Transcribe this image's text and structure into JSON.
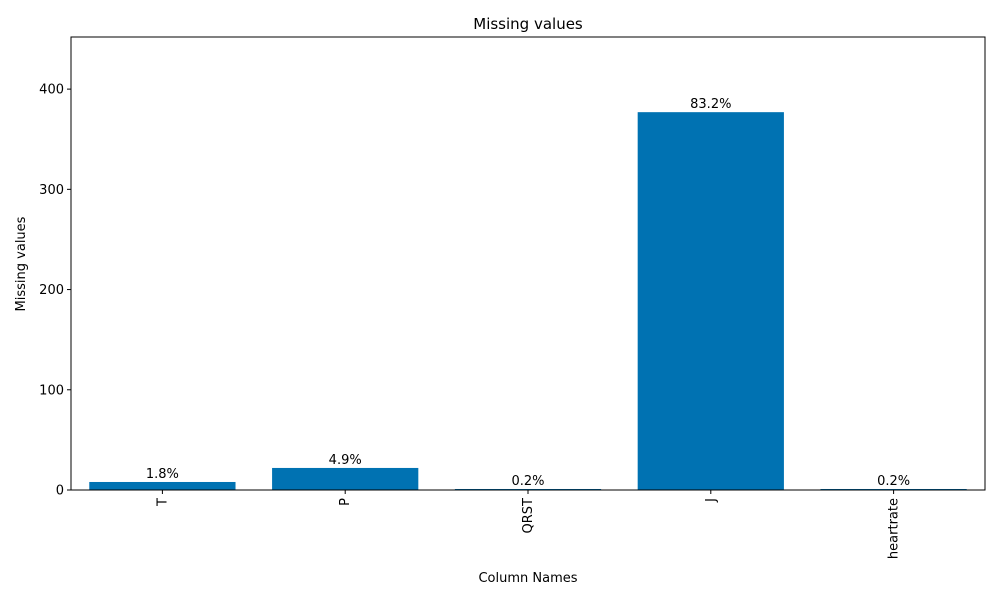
{
  "chart_data": {
    "type": "bar",
    "title": "Missing values",
    "xlabel": "Column Names",
    "ylabel": "Missing values",
    "categories": [
      "T",
      "P",
      "QRST",
      "J",
      "heartrate"
    ],
    "values": [
      8,
      22,
      1,
      377,
      1
    ],
    "data_labels": [
      "1.8%",
      "4.9%",
      "0.2%",
      "83.2%",
      "0.2%"
    ],
    "ylim": [
      0,
      452
    ],
    "yticks": [
      0,
      100,
      200,
      300,
      400
    ],
    "ytick_labels": [
      "0",
      "100",
      "200",
      "300",
      "400"
    ],
    "bar_color": "#0072b2",
    "grid": false,
    "legend": "none",
    "xtick_rotation": 90
  }
}
